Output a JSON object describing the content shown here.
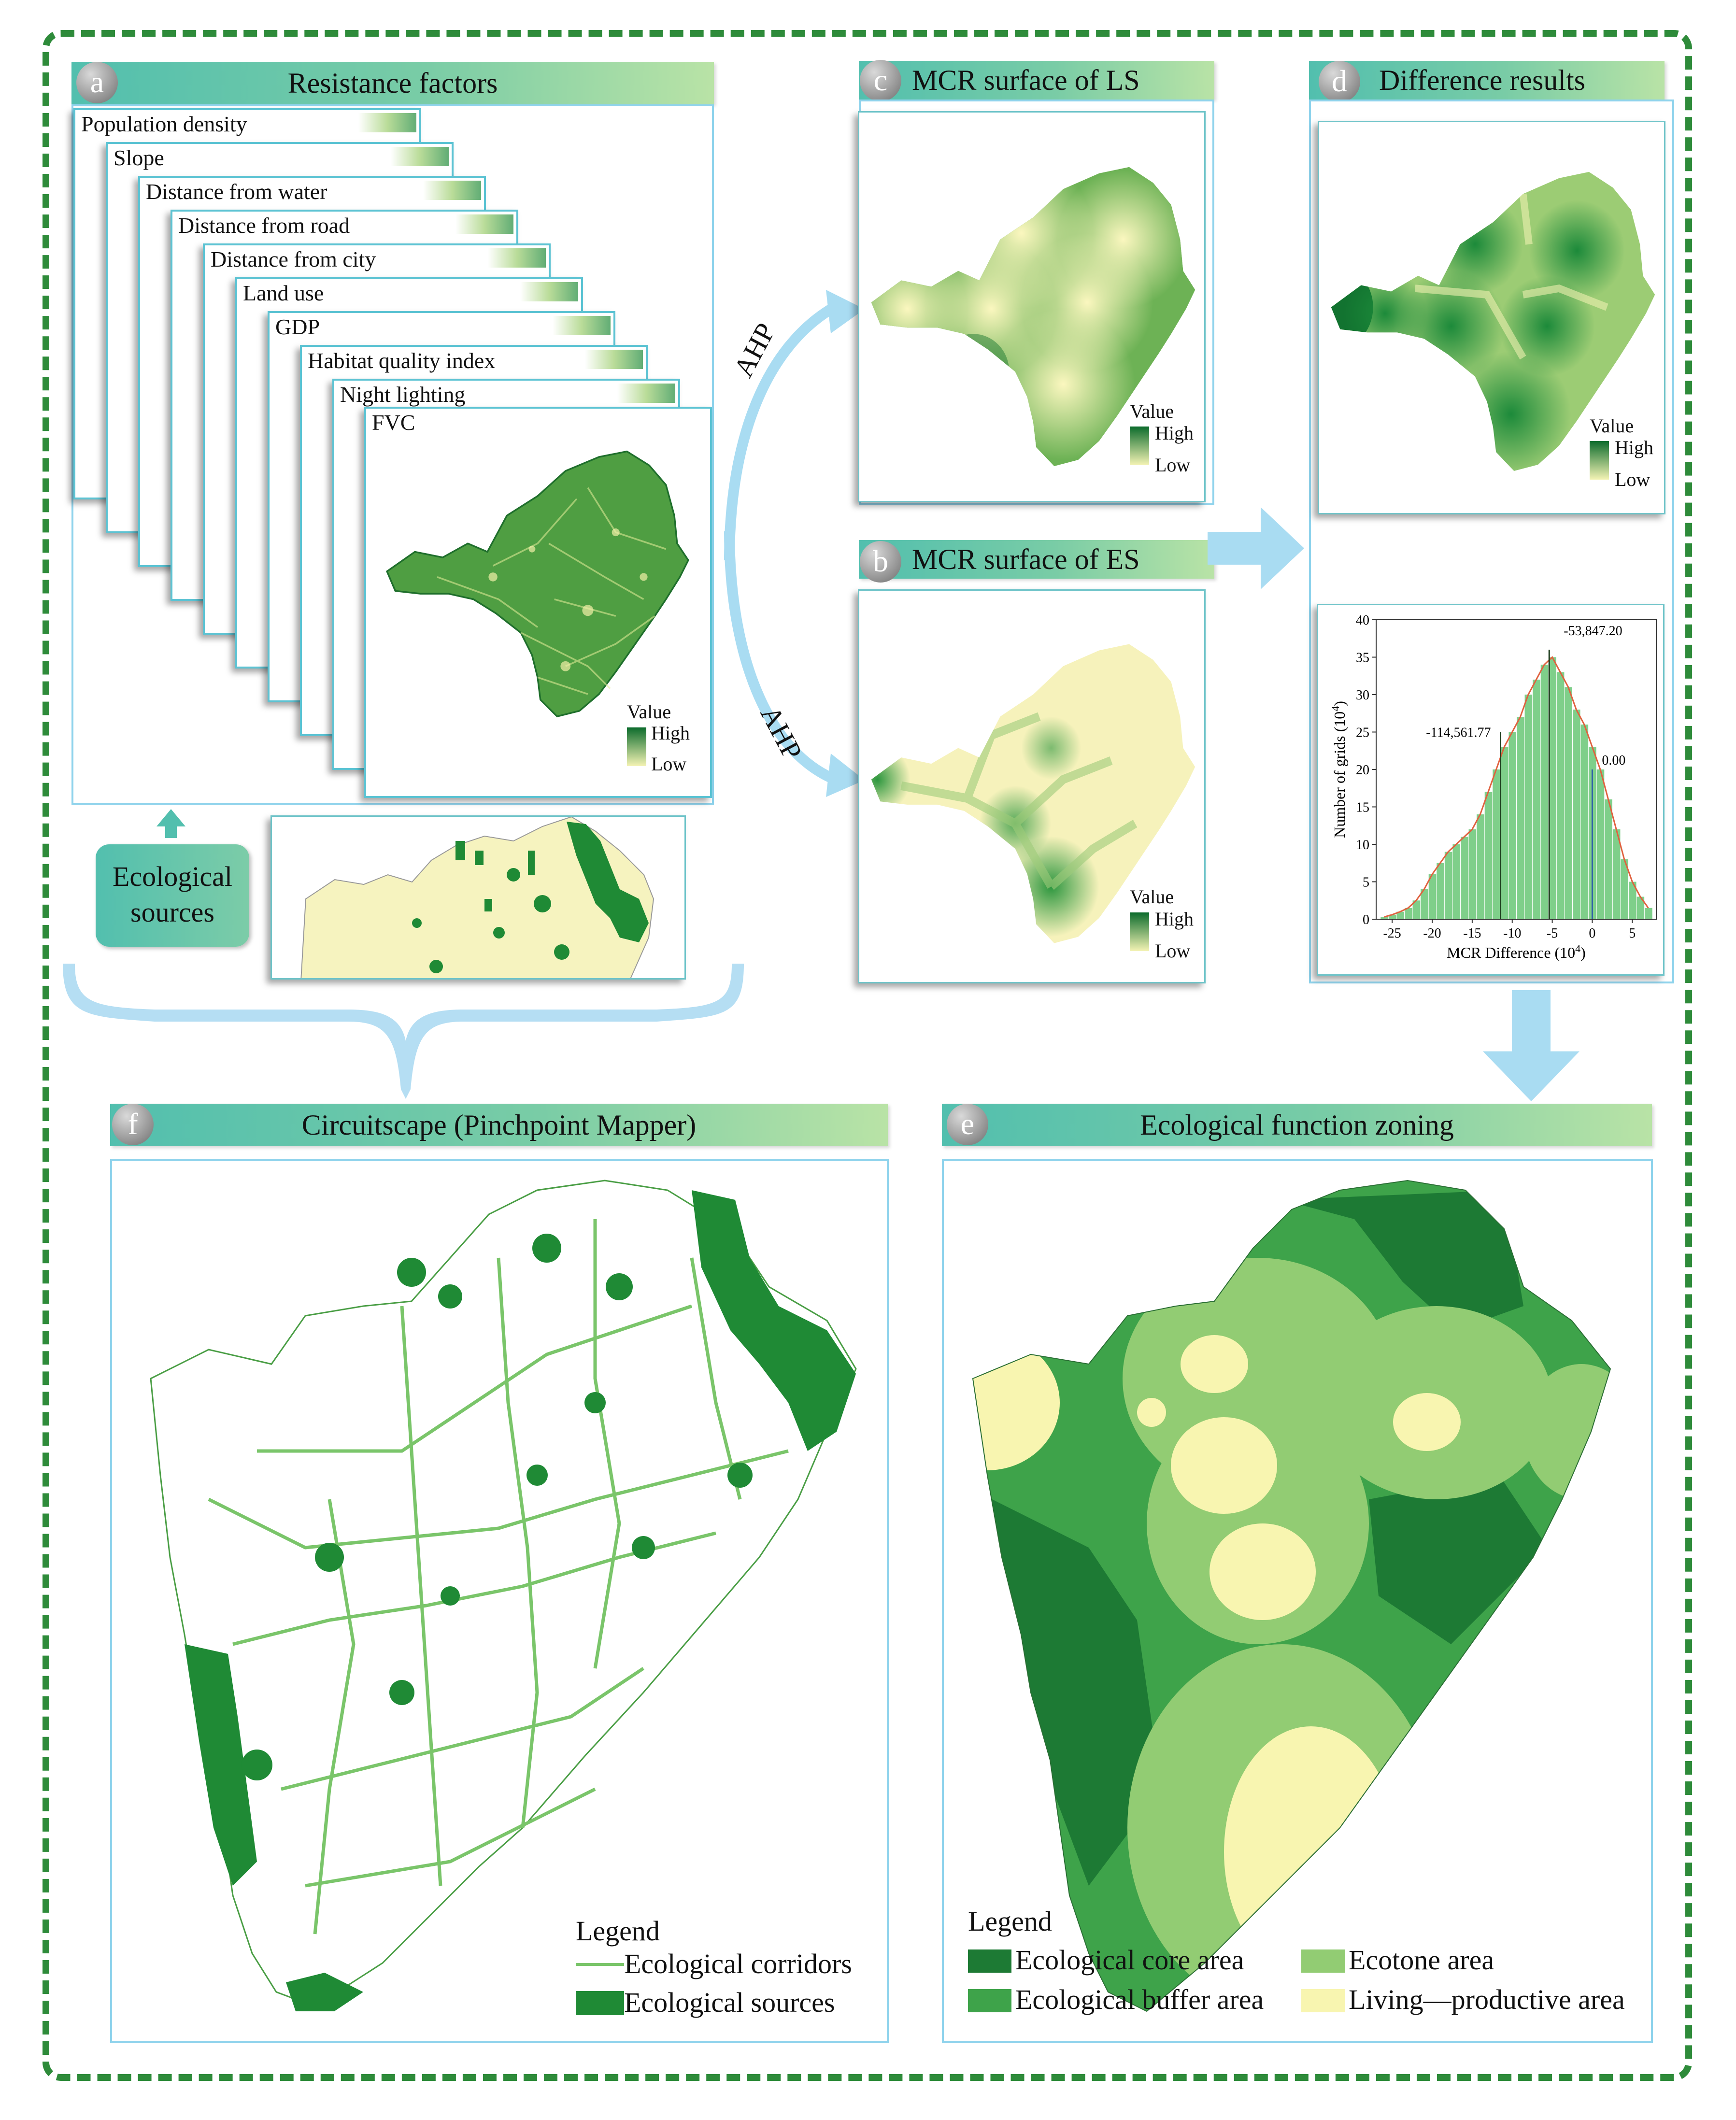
{
  "panel_a": {
    "badge": "a",
    "title": "Resistance factors",
    "layers": [
      "Population density",
      "Slope",
      "Distance from water",
      "Distance from road",
      "Distance from city",
      "Land use",
      "GDP",
      "Habitat quality index",
      "Night lighting",
      "FVC"
    ],
    "legend_title": "Value",
    "legend_high": "High",
    "legend_low": "Low"
  },
  "ecological_sources_box": {
    "label": "Ecological\nsources"
  },
  "arrows": {
    "ahp_top": "AHP",
    "ahp_bottom": "AHP"
  },
  "panel_c": {
    "badge": "c",
    "title": "MCR surface of LS",
    "legend_title": "Value",
    "legend_high": "High",
    "legend_low": "Low"
  },
  "panel_b": {
    "badge": "b",
    "title": "MCR surface of ES",
    "legend_title": "Value",
    "legend_high": "High",
    "legend_low": "Low"
  },
  "panel_d": {
    "badge": "d",
    "title": "Difference results",
    "legend_title": "Value",
    "legend_high": "High",
    "legend_low": "Low"
  },
  "histogram": {
    "xlabel": "MCR Difference (10",
    "xlabel_sup": "4",
    "xlabel_end": ")",
    "ylabel": "Number of grids (10",
    "ylabel_sup": "4",
    "ylabel_end": ")",
    "annotations": [
      "-114,561.77",
      "-53,847.20",
      "0.00"
    ]
  },
  "chart_data": {
    "type": "bar",
    "xlim": [
      -27,
      8
    ],
    "ylim": [
      0,
      40
    ],
    "xticks": [
      -25,
      -20,
      -15,
      -10,
      -5,
      0,
      5
    ],
    "yticks": [
      0,
      5,
      10,
      15,
      20,
      25,
      30,
      35,
      40
    ],
    "x": [
      -26,
      -25,
      -24,
      -23,
      -22,
      -21,
      -20,
      -19,
      -18,
      -17,
      -16,
      -15,
      -14,
      -13,
      -12,
      -11,
      -10,
      -9,
      -8,
      -7,
      -6,
      -5,
      -4,
      -3,
      -2,
      -1,
      0,
      1,
      2,
      3,
      4,
      5,
      6,
      7
    ],
    "values": [
      0.3,
      0.6,
      1,
      1.5,
      2.5,
      4,
      6,
      7.5,
      9,
      10,
      11,
      12,
      14,
      17,
      20,
      23,
      25,
      27,
      30,
      32,
      34,
      35,
      33,
      31,
      28,
      26,
      23,
      20,
      16,
      12,
      8,
      5,
      3,
      1.5
    ],
    "markers": [
      {
        "x": -11.46,
        "label": "-114,561.77"
      },
      {
        "x": -5.38,
        "label": "-53,847.20"
      },
      {
        "x": 0,
        "label": "0.00"
      }
    ]
  },
  "panel_f": {
    "badge": "f",
    "title": "Circuitscape (Pinchpoint Mapper)",
    "legend_title": "Legend",
    "legend_items": [
      "Ecological corridors",
      "Ecological sources"
    ]
  },
  "panel_e": {
    "badge": "e",
    "title": "Ecological function zoning",
    "legend_title": "Legend",
    "legend_items": [
      "Ecological core area",
      "Ecotone area",
      "Ecological buffer area",
      "Living—productive area"
    ]
  },
  "colors": {
    "core": "#1d7a34",
    "buffer": "#3ea34a",
    "ecotone": "#92cc73",
    "living": "#f8f5b0",
    "header_start": "#52bfae",
    "header_end": "#b9e3a6",
    "arrow": "#a9dcf2",
    "frame": "#2e8b3a"
  }
}
